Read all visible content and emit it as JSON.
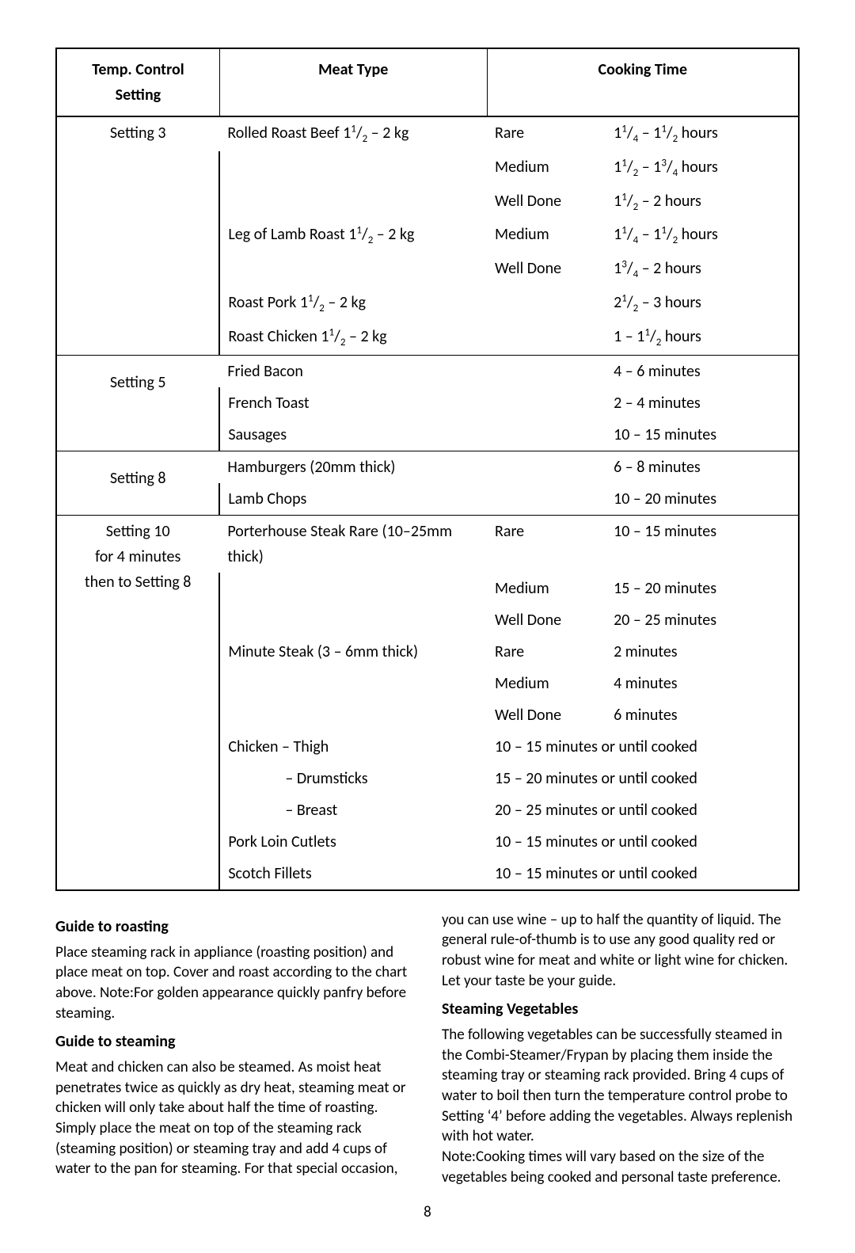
{
  "table": {
    "header": {
      "setting": "Temp. Control\nSetting",
      "meat": "Meat Type",
      "time": "Cooking Time"
    },
    "groups": [
      {
        "setting_lines": [
          "Setting 3"
        ],
        "rows": [
          {
            "meat": "Rolled Roast Beef 1½ – 2 kg",
            "done": "Rare",
            "time": "1¼ – 1½ hours"
          },
          {
            "meat": "",
            "done": "Medium",
            "time": "1½ – 1¾ hours"
          },
          {
            "meat": "",
            "done": "Well Done",
            "time": "1½ – 2 hours"
          },
          {
            "meat": "Leg of Lamb Roast 1½ – 2 kg",
            "done": "Medium",
            "time": "1¼ – 1½ hours"
          },
          {
            "meat": "",
            "done": "Well Done",
            "time": "1¾ – 2 hours"
          },
          {
            "meat": "Roast Pork 1½ – 2 kg",
            "done": "",
            "time": "2½ – 3 hours"
          },
          {
            "meat": "Roast Chicken 1½ – 2 kg",
            "done": "",
            "time": "1 – 1½ hours"
          }
        ]
      },
      {
        "setting_lines": [
          "Setting 5"
        ],
        "rows": [
          {
            "meat": "Fried Bacon",
            "done": "",
            "time": "4 – 6 minutes"
          },
          {
            "meat": "French Toast",
            "done": "",
            "time": "2 – 4 minutes"
          },
          {
            "meat": "Sausages",
            "done": "",
            "time": "10 – 15 minutes"
          }
        ]
      },
      {
        "setting_lines": [
          "Setting 8"
        ],
        "rows": [
          {
            "meat": "Hamburgers (20mm thick)",
            "done": "",
            "time": "6 – 8 minutes"
          },
          {
            "meat": "Lamb Chops",
            "done": "",
            "time": "10 – 20 minutes"
          }
        ]
      },
      {
        "setting_lines": [
          "Setting 10",
          "for 4 minutes",
          "then to Setting 8"
        ],
        "rows": [
          {
            "meat": "Porterhouse Steak Rare (10–25mm thick)",
            "done": "Rare",
            "time": "10 – 15 minutes"
          },
          {
            "meat": "",
            "done": "Medium",
            "time": "15 – 20 minutes"
          },
          {
            "meat": "",
            "done": "Well Done",
            "time": "20 – 25 minutes"
          },
          {
            "meat": "Minute Steak (3 – 6mm thick)",
            "done": "Rare",
            "time": "2 minutes"
          },
          {
            "meat": "",
            "done": "Medium",
            "time": "4 minutes"
          },
          {
            "meat": "",
            "done": "Well Done",
            "time": "6 minutes"
          },
          {
            "meat": "Chicken   – Thigh",
            "done_span": "10 – 15 minutes or until cooked"
          },
          {
            "meat": "              – Drumsticks",
            "done_span": "15 – 20 minutes or until cooked",
            "indent": true
          },
          {
            "meat": "              – Breast",
            "done_span": "20 – 25 minutes or until cooked",
            "indent": true
          },
          {
            "meat": "Pork Loin Cutlets",
            "done_span": "10 – 15 minutes or until cooked"
          },
          {
            "meat": "Scotch Fillets",
            "done_span": "10 – 15 minutes or until cooked"
          }
        ]
      }
    ]
  },
  "guide_roasting": {
    "title": "Guide to roasting",
    "body": "Place steaming rack in appliance (roasting position) and place meat on top. Cover and roast according to the chart above. Note:For golden appearance quickly panfry before steaming."
  },
  "guide_steaming": {
    "title": "Guide to steaming",
    "body": "Meat and chicken can also be steamed. As moist heat penetrates twice as quickly as dry heat, steaming meat or chicken will only take about half the time of roasting. Simply place the meat on top of the steaming rack (steaming position) or steaming tray and add 4 cups of water to the pan for steaming. For that special occasion, you can use wine – up to half the quantity of liquid. The general rule-of-thumb is to use any good quality red or robust wine for meat and white or light wine for chicken. Let your taste be your guide."
  },
  "steam_veg": {
    "title": "Steaming Vegetables",
    "body": "The following vegetables can be successfully steamed in the Combi-Steamer/Frypan by placing them inside the steaming tray or steaming rack provided. Bring 4 cups of water to boil then turn the temperature control probe to Setting ‘4’ before adding the vegetables. Always replenish with hot water.\nNote:Cooking times will vary based on the size of the vegetables being cooked and personal taste preference."
  },
  "page_number": "8"
}
